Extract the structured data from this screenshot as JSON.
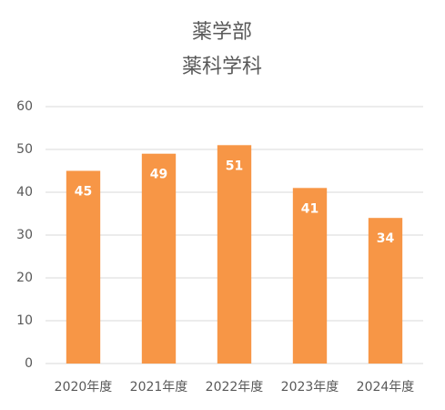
{
  "chart_data": {
    "type": "bar",
    "title": "薬学部",
    "subtitle": "薬科学科",
    "categories": [
      "2020年度",
      "2021年度",
      "2022年度",
      "2023年度",
      "2024年度"
    ],
    "values": [
      45,
      49,
      51,
      41,
      34
    ],
    "color": "#f79646",
    "ylim": [
      0,
      60
    ],
    "yticks": [
      0,
      10,
      20,
      30,
      40,
      50,
      60
    ],
    "grid": true,
    "data_labels": true
  }
}
